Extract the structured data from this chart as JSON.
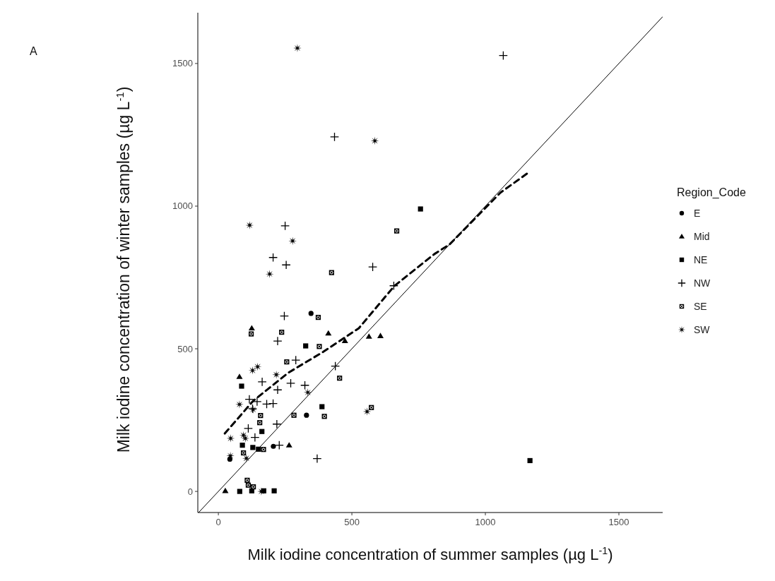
{
  "chart_data": {
    "type": "scatter",
    "xlabel": "Milk iodine concentration of summer samples (µg L$^{-1}$)",
    "ylabel": "Milk iodine concentration of winter samples (µg L$^{-1}$)",
    "legend_title": "Region_Code",
    "legend": "right",
    "grid": false,
    "annotations": [
      "A"
    ],
    "xlim": [
      -77,
      1664
    ],
    "ylim": [
      -74,
      1678
    ],
    "xticks": [
      0,
      500,
      1000,
      1500
    ],
    "yticks": [
      0,
      500,
      1000,
      1500
    ],
    "series": [
      {
        "name": "E",
        "color": "#000000",
        "marker": "circle",
        "x": [
          347,
          330,
          206,
          43
        ],
        "values": [
          624,
          267,
          158,
          113
        ]
      },
      {
        "name": "Mid",
        "color": "#000000",
        "marker": "triangle",
        "x": [
          125,
          412,
          474,
          79,
          265,
          26,
          564,
          607
        ],
        "values": [
          572,
          554,
          528,
          402,
          162,
          2,
          543,
          545
        ]
      },
      {
        "name": "NE",
        "color": "#000000",
        "marker": "square",
        "x": [
          327,
          87,
          388,
          163,
          90,
          129,
          150,
          80,
          125,
          170,
          209,
          757,
          1167
        ],
        "values": [
          510,
          369,
          297,
          210,
          162,
          154,
          148,
          0,
          2,
          2,
          2,
          990,
          108
        ]
      },
      {
        "name": "NW",
        "color": "#000000",
        "marker": "cross",
        "x": [
          222,
          247,
          290,
          164,
          271,
          222,
          324,
          438,
          116,
          145,
          181,
          205,
          128,
          219,
          112,
          137,
          228,
          370,
          250,
          205,
          254,
          578,
          657,
          1067,
          435
        ],
        "values": [
          527,
          615,
          460,
          384,
          379,
          356,
          372,
          439,
          323,
          315,
          306,
          308,
          290,
          236,
          221,
          189,
          162,
          115,
          931,
          820,
          794,
          787,
          721,
          1528,
          1243
        ]
      },
      {
        "name": "SE",
        "color": "#000000",
        "marker": "square-dot",
        "x": [
          123,
          237,
          374,
          378,
          256,
          454,
          158,
          155,
          283,
          397,
          169,
          94,
          108,
          112,
          131,
          424,
          668,
          573
        ],
        "values": [
          552,
          558,
          610,
          508,
          454,
          397,
          266,
          241,
          267,
          263,
          147,
          135,
          39,
          22,
          16,
          767,
          913,
          294
        ]
      },
      {
        "name": "SW",
        "color": "#000000",
        "marker": "star",
        "x": [
          128,
          147,
          217,
          335,
          79,
          130,
          46,
          94,
          101,
          45,
          105,
          161,
          117,
          278,
          192,
          557,
          296,
          586
        ],
        "values": [
          424,
          437,
          409,
          347,
          305,
          287,
          186,
          197,
          186,
          125,
          116,
          0,
          933,
          878,
          762,
          280,
          1554,
          1229
        ]
      },
      {
        "type": "line",
        "color": "#000000",
        "line_style": "solid",
        "x": [
          -74,
          1664
        ],
        "values": [
          -74,
          1664
        ]
      },
      {
        "type": "line",
        "color": "#000000",
        "line_style": "dashed",
        "x": [
          24,
          130,
          262,
          394,
          526,
          659,
          809,
          865,
          1056,
          1156
        ],
        "values": [
          203,
          317,
          416,
          490,
          572,
          720,
          832,
          865,
          1047,
          1114
        ]
      }
    ]
  }
}
